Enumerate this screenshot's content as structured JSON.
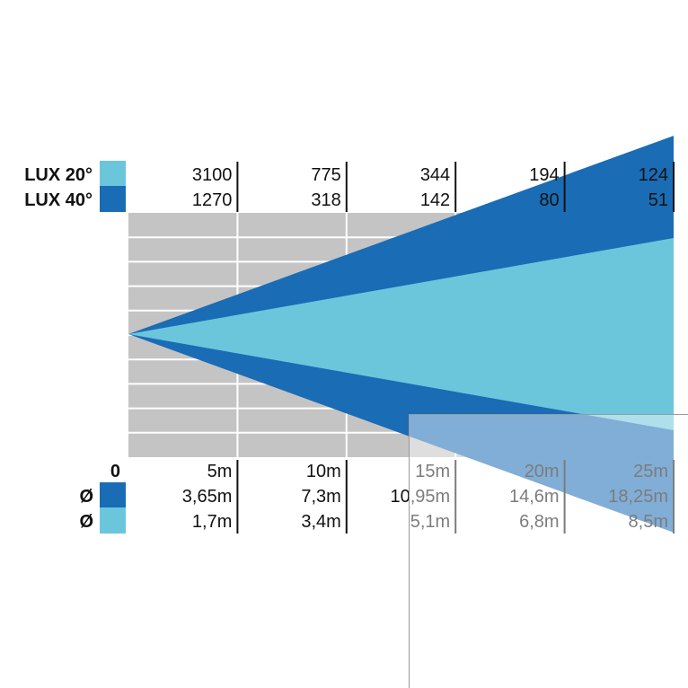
{
  "chart_data": {
    "type": "area",
    "title": "",
    "legend": [
      {
        "name": "LUX 20°",
        "color": "#6bc6dc"
      },
      {
        "name": "LUX 40°",
        "color": "#1a6cb5"
      }
    ],
    "distances": [
      "5m",
      "10m",
      "15m",
      "20m",
      "25m"
    ],
    "distance_origin_label": "0",
    "x": [
      5,
      10,
      15,
      20,
      25
    ],
    "xlim": [
      0,
      25
    ],
    "series": [
      {
        "name": "LUX 20°",
        "beam_angle": 20,
        "color": "#6bc6dc",
        "lux": [
          "3100",
          "775",
          "344",
          "194",
          "124"
        ],
        "diameter": [
          "1,7m",
          "3,4m",
          "5,1m",
          "6,8m",
          "8,5m"
        ]
      },
      {
        "name": "LUX 40°",
        "beam_angle": 40,
        "color": "#1a6cb5",
        "lux": [
          "1270",
          "318",
          "142",
          "80",
          "51"
        ],
        "diameter": [
          "3,65m",
          "7,3m",
          "10,95m",
          "14,6m",
          "18,25m"
        ]
      }
    ],
    "diameter_symbol": "Ø",
    "grid": true,
    "background_color": "#c4c4c4",
    "grid_color": "#ffffff"
  }
}
